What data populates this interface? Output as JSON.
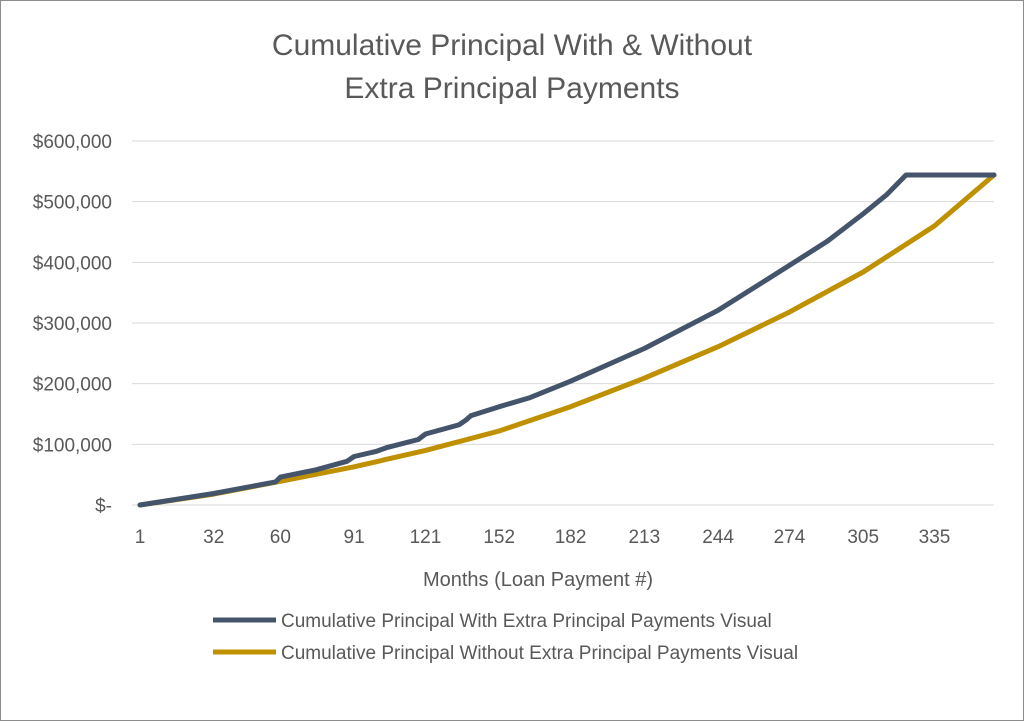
{
  "chart_data": {
    "type": "line",
    "title_lines": [
      "Cumulative Principal With & Without",
      "Extra Principal Payments"
    ],
    "xlabel": "Months (Loan Payment #)",
    "ylabel": "",
    "ylim": [
      0,
      600000
    ],
    "xlim": [
      1,
      360
    ],
    "y_ticks": [
      {
        "value": 0,
        "label": "$-"
      },
      {
        "value": 100000,
        "label": "$100,000"
      },
      {
        "value": 200000,
        "label": "$200,000"
      },
      {
        "value": 300000,
        "label": "$300,000"
      },
      {
        "value": 400000,
        "label": "$400,000"
      },
      {
        "value": 500000,
        "label": "$500,000"
      },
      {
        "value": 600000,
        "label": "$600,000"
      }
    ],
    "x_ticks": [
      {
        "value": 1,
        "label": "1"
      },
      {
        "value": 32,
        "label": "32"
      },
      {
        "value": 60,
        "label": "60"
      },
      {
        "value": 91,
        "label": "91"
      },
      {
        "value": 121,
        "label": "121"
      },
      {
        "value": 152,
        "label": "152"
      },
      {
        "value": 182,
        "label": "182"
      },
      {
        "value": 213,
        "label": "213"
      },
      {
        "value": 244,
        "label": "244"
      },
      {
        "value": 274,
        "label": "274"
      },
      {
        "value": 305,
        "label": "305"
      },
      {
        "value": 335,
        "label": "335"
      }
    ],
    "grid": true,
    "legend_position": "bottom",
    "series": [
      {
        "name": "Cumulative Principal With Extra Principal Payments Visual",
        "color": "#44546a",
        "points": [
          [
            1,
            0
          ],
          [
            32,
            19000
          ],
          [
            58,
            38000
          ],
          [
            60,
            46000
          ],
          [
            75,
            58000
          ],
          [
            88,
            72000
          ],
          [
            91,
            80000
          ],
          [
            100,
            88000
          ],
          [
            105,
            95000
          ],
          [
            118,
            108000
          ],
          [
            121,
            117000
          ],
          [
            135,
            132000
          ],
          [
            138,
            140000
          ],
          [
            140,
            147000
          ],
          [
            152,
            162000
          ],
          [
            165,
            177000
          ],
          [
            182,
            204000
          ],
          [
            213,
            258000
          ],
          [
            244,
            321000
          ],
          [
            274,
            395000
          ],
          [
            290,
            435000
          ],
          [
            305,
            480000
          ],
          [
            315,
            512000
          ],
          [
            323,
            544000
          ],
          [
            360,
            544000
          ]
        ]
      },
      {
        "name": "Cumulative Principal Without Extra Principal Payments Visual",
        "color": "#bf9000",
        "points": [
          [
            1,
            0
          ],
          [
            32,
            18000
          ],
          [
            60,
            39000
          ],
          [
            91,
            63000
          ],
          [
            121,
            90000
          ],
          [
            152,
            122000
          ],
          [
            182,
            162000
          ],
          [
            213,
            209000
          ],
          [
            244,
            261000
          ],
          [
            274,
            318000
          ],
          [
            305,
            384000
          ],
          [
            335,
            460000
          ],
          [
            360,
            544000
          ]
        ]
      }
    ]
  }
}
